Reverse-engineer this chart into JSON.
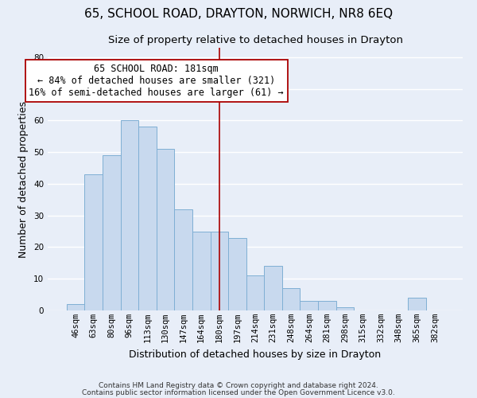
{
  "title": "65, SCHOOL ROAD, DRAYTON, NORWICH, NR8 6EQ",
  "subtitle": "Size of property relative to detached houses in Drayton",
  "xlabel": "Distribution of detached houses by size in Drayton",
  "ylabel": "Number of detached properties",
  "bar_labels": [
    "46sqm",
    "63sqm",
    "80sqm",
    "96sqm",
    "113sqm",
    "130sqm",
    "147sqm",
    "164sqm",
    "180sqm",
    "197sqm",
    "214sqm",
    "231sqm",
    "248sqm",
    "264sqm",
    "281sqm",
    "298sqm",
    "315sqm",
    "332sqm",
    "348sqm",
    "365sqm",
    "382sqm"
  ],
  "bar_values": [
    2,
    43,
    49,
    60,
    58,
    51,
    32,
    25,
    25,
    23,
    11,
    14,
    7,
    3,
    3,
    1,
    0,
    0,
    0,
    4,
    0
  ],
  "bar_color": "#c8d9ee",
  "bar_edge_color": "#7fafd4",
  "marker_index": 8,
  "marker_line_color": "#aa0000",
  "annotation_title": "65 SCHOOL ROAD: 181sqm",
  "annotation_line1": "← 84% of detached houses are smaller (321)",
  "annotation_line2": "16% of semi-detached houses are larger (61) →",
  "annotation_box_color": "#ffffff",
  "annotation_box_edge_color": "#aa0000",
  "ylim": [
    0,
    83
  ],
  "yticks": [
    0,
    10,
    20,
    30,
    40,
    50,
    60,
    70,
    80
  ],
  "footer1": "Contains HM Land Registry data © Crown copyright and database right 2024.",
  "footer2": "Contains public sector information licensed under the Open Government Licence v3.0.",
  "background_color": "#e8eef8",
  "grid_color": "#ffffff",
  "title_fontsize": 11,
  "subtitle_fontsize": 9.5,
  "axis_label_fontsize": 9,
  "tick_fontsize": 7.5,
  "annotation_fontsize": 8.5,
  "footer_fontsize": 6.5
}
